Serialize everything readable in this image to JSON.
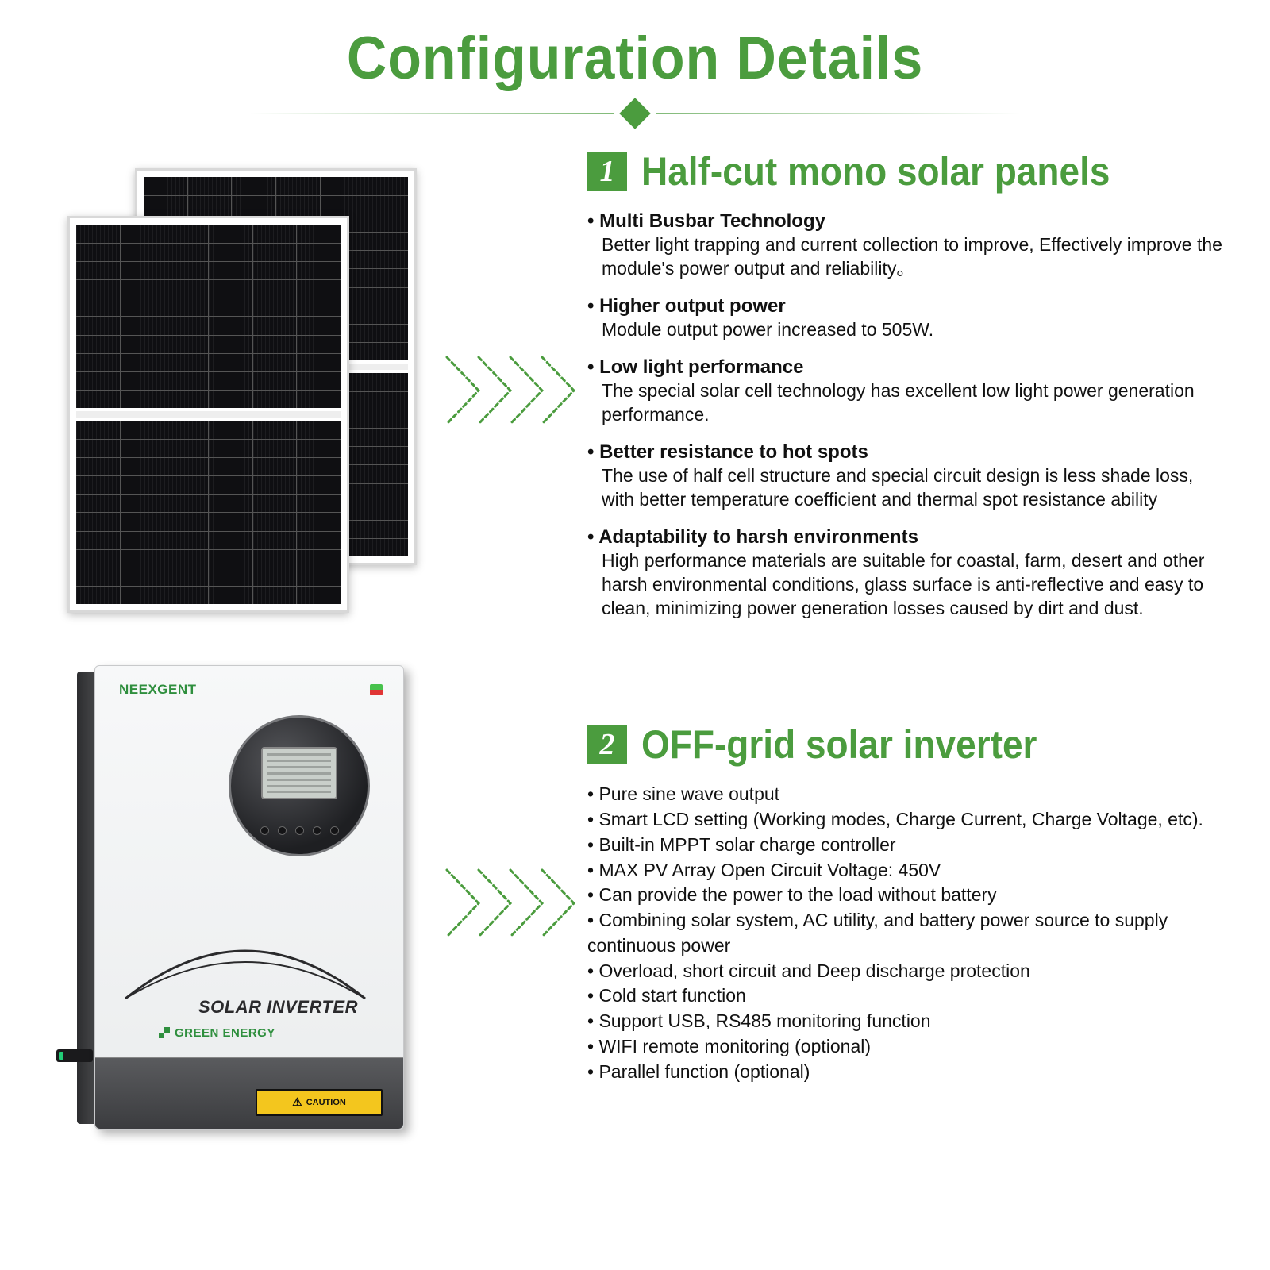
{
  "colors": {
    "brand_green": "#4b9c3e",
    "text": "#111111",
    "bg": "#ffffff"
  },
  "title": "Configuration Details",
  "sections": [
    {
      "num": "1",
      "title": "Half-cut mono solar panels",
      "features": [
        {
          "h": "Multi Busbar Technology",
          "d": "Better light trapping and current collection to improve, Effectively improve the module's power output and reliability。"
        },
        {
          "h": "Higher output power",
          "d": "Module output power increased to 505W."
        },
        {
          "h": "Low light performance",
          "d": "The special solar cell technology has excellent low light power generation performance."
        },
        {
          "h": "Better resistance to hot spots",
          "d": "The use of half cell structure and special circuit design is less shade loss, with better temperature coefficient and thermal spot resistance ability"
        },
        {
          "h": "Adaptability to harsh environments",
          "d": "High performance materials are suitable for coastal, farm, desert and other harsh environmental conditions, glass surface is anti-reflective and easy to clean, minimizing power generation losses caused by dirt and dust."
        }
      ]
    },
    {
      "num": "2",
      "title": "OFF-grid solar inverter",
      "bullets": [
        "Pure sine wave output",
        "Smart LCD setting (Working modes, Charge Current, Charge Voltage, etc).",
        "Built-in MPPT solar charge controller",
        "MAX PV Array Open Circuit Voltage: 450V",
        "Can provide the power to the load without battery",
        "Combining solar system, AC utility, and battery power source to supply continuous power",
        "Overload, short circuit and Deep discharge protection",
        "Cold start function",
        "Support USB, RS485 monitoring function",
        "WIFI remote monitoring (optional)",
        "Parallel function (optional)"
      ]
    }
  ],
  "inverter": {
    "brand": "NEEXGENT",
    "label": "SOLAR INVERTER",
    "sub": "GREEN ENERGY",
    "caution": "CAUTION"
  },
  "arrow": {
    "stroke": "#4b9c3e",
    "dash": "5,4",
    "stroke_width": 3
  }
}
